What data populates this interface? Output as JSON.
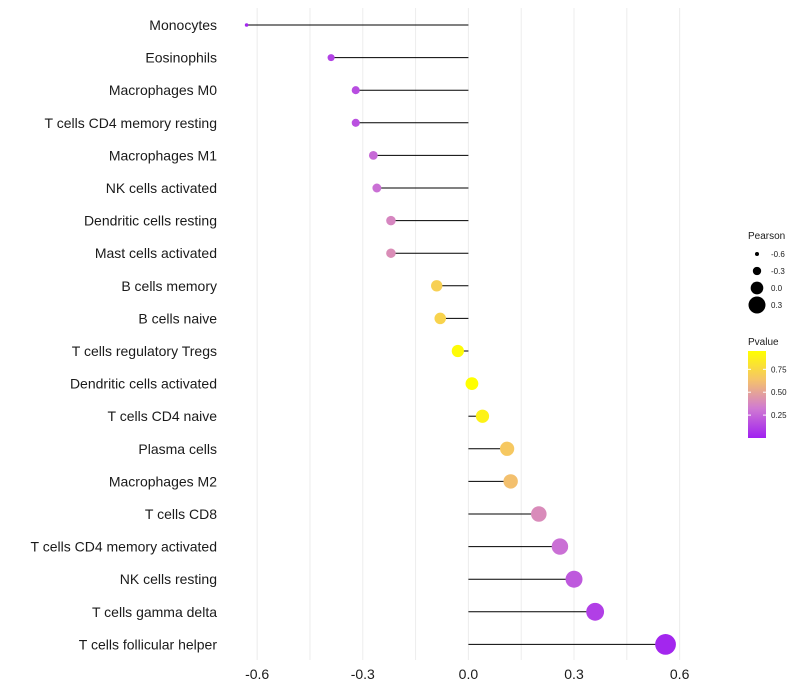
{
  "chart_data": {
    "type": "lollipop",
    "x_ticks": [
      -0.6,
      -0.3,
      0.0,
      0.3,
      0.6
    ],
    "x_tick_labels": [
      "-0.6",
      "-0.3",
      "0.0",
      "0.3",
      "0.6"
    ],
    "xlim": [
      -0.68,
      0.78
    ],
    "points": [
      {
        "label": "Monocytes",
        "r": -0.63,
        "p": 0.02
      },
      {
        "label": "Eosinophils",
        "r": -0.39,
        "p": 0.12
      },
      {
        "label": "Macrophages M0",
        "r": -0.32,
        "p": 0.16
      },
      {
        "label": "T cells CD4 memory resting",
        "r": -0.32,
        "p": 0.17
      },
      {
        "label": "Macrophages M1",
        "r": -0.27,
        "p": 0.26
      },
      {
        "label": "NK cells activated",
        "r": -0.26,
        "p": 0.28
      },
      {
        "label": "Dendritic cells resting",
        "r": -0.22,
        "p": 0.37
      },
      {
        "label": "Mast cells activated",
        "r": -0.22,
        "p": 0.4
      },
      {
        "label": "B cells memory",
        "r": -0.09,
        "p": 0.7
      },
      {
        "label": "B cells naive",
        "r": -0.08,
        "p": 0.72
      },
      {
        "label": "T cells regulatory  Tregs",
        "r": -0.03,
        "p": 0.93
      },
      {
        "label": "Dendritic cells activated",
        "r": 0.01,
        "p": 0.98
      },
      {
        "label": "T cells CD4 naive",
        "r": 0.04,
        "p": 0.88
      },
      {
        "label": "Plasma cells",
        "r": 0.11,
        "p": 0.66
      },
      {
        "label": "Macrophages M2",
        "r": 0.12,
        "p": 0.62
      },
      {
        "label": "T cells CD8",
        "r": 0.2,
        "p": 0.39
      },
      {
        "label": "T cells CD4 memory activated",
        "r": 0.26,
        "p": 0.28
      },
      {
        "label": "NK cells resting",
        "r": 0.3,
        "p": 0.2
      },
      {
        "label": "T cells gamma delta",
        "r": 0.36,
        "p": 0.11
      },
      {
        "label": "T cells follicular helper",
        "r": 0.56,
        "p": 0.02
      }
    ],
    "legend_size": {
      "title": "Pearson",
      "values": [
        -0.6,
        -0.3,
        0.0,
        0.3
      ],
      "labels": [
        "-0.6",
        "-0.3",
        "0.0",
        "0.3"
      ]
    },
    "legend_color": {
      "title": "Pvalue",
      "range": [
        0.0,
        0.95
      ],
      "ticks": [
        0.75,
        0.5,
        0.25
      ],
      "labels": [
        "0.75",
        "0.50",
        "0.25"
      ],
      "gradient": [
        "#ffff00",
        "#f5c36a",
        "#d07ad2",
        "#a020f0"
      ]
    }
  }
}
